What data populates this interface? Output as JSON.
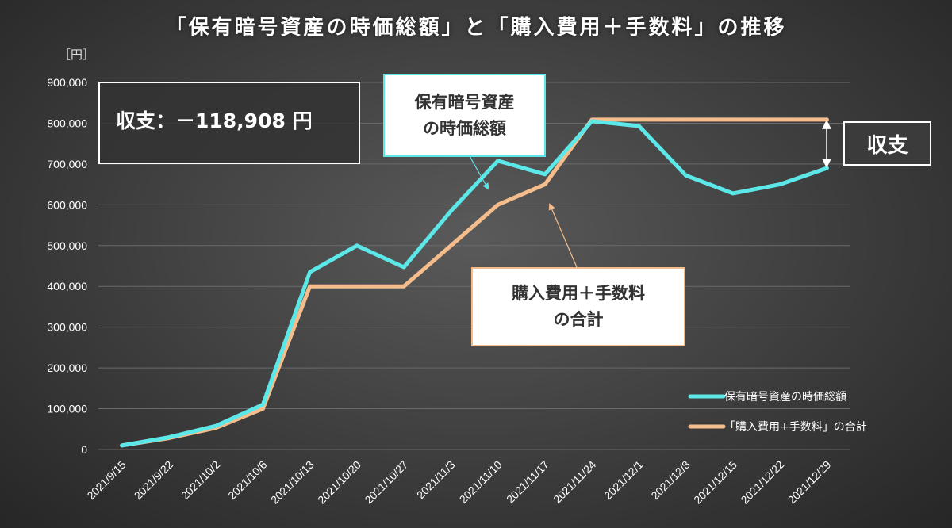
{
  "title": "「保有暗号資産の時価総額」と「購入費用＋手数料」の推移",
  "unit": "［円］",
  "callouts": {
    "balance": "収支：－118,908 円",
    "assets": "保有暗号資産\nの時価総額",
    "cost": "購入費用＋手数料\nの合計",
    "difference": "収支"
  },
  "colors": {
    "assets_series": "#5ce8e8",
    "cost_series": "#f6bd8c",
    "grid": "#6a6a6a",
    "axis_text": "#ffffff"
  },
  "chart_data": {
    "type": "line",
    "title": "「保有暗号資産の時価総額」と「購入費用＋手数料」の推移",
    "xlabel": "",
    "ylabel": "［円］",
    "categories": [
      "2021/9/15",
      "2021/9/22",
      "2021/10/2",
      "2021/10/6",
      "2021/10/13",
      "2021/10/20",
      "2021/10/27",
      "2021/11/3",
      "2021/11/10",
      "2021/11/17",
      "2021/11/24",
      "2021/12/1",
      "2021/12/8",
      "2021/12/15",
      "2021/12/22",
      "2021/12/29"
    ],
    "series": [
      {
        "name": "保有暗号資産の時価総額",
        "values": [
          10000,
          30000,
          58000,
          110000,
          435000,
          500000,
          447000,
          585000,
          708000,
          675000,
          805000,
          793000,
          672000,
          628000,
          650000,
          690000
        ]
      },
      {
        "name": "「購入費用+手数料」の合計",
        "values": [
          10000,
          28000,
          53000,
          100000,
          400000,
          400000,
          400000,
          500000,
          600000,
          650000,
          808908,
          808908,
          808908,
          808908,
          808908,
          808908
        ]
      }
    ],
    "ylim": [
      0,
      900000
    ],
    "yticks": [
      0,
      100000,
      200000,
      300000,
      400000,
      500000,
      600000,
      700000,
      800000,
      900000
    ],
    "ytick_labels": [
      "0",
      "100,000",
      "200,000",
      "300,000",
      "400,000",
      "500,000",
      "600,000",
      "700,000",
      "800,000",
      "900,000"
    ],
    "grid": true,
    "legend_position": "bottom-right"
  }
}
